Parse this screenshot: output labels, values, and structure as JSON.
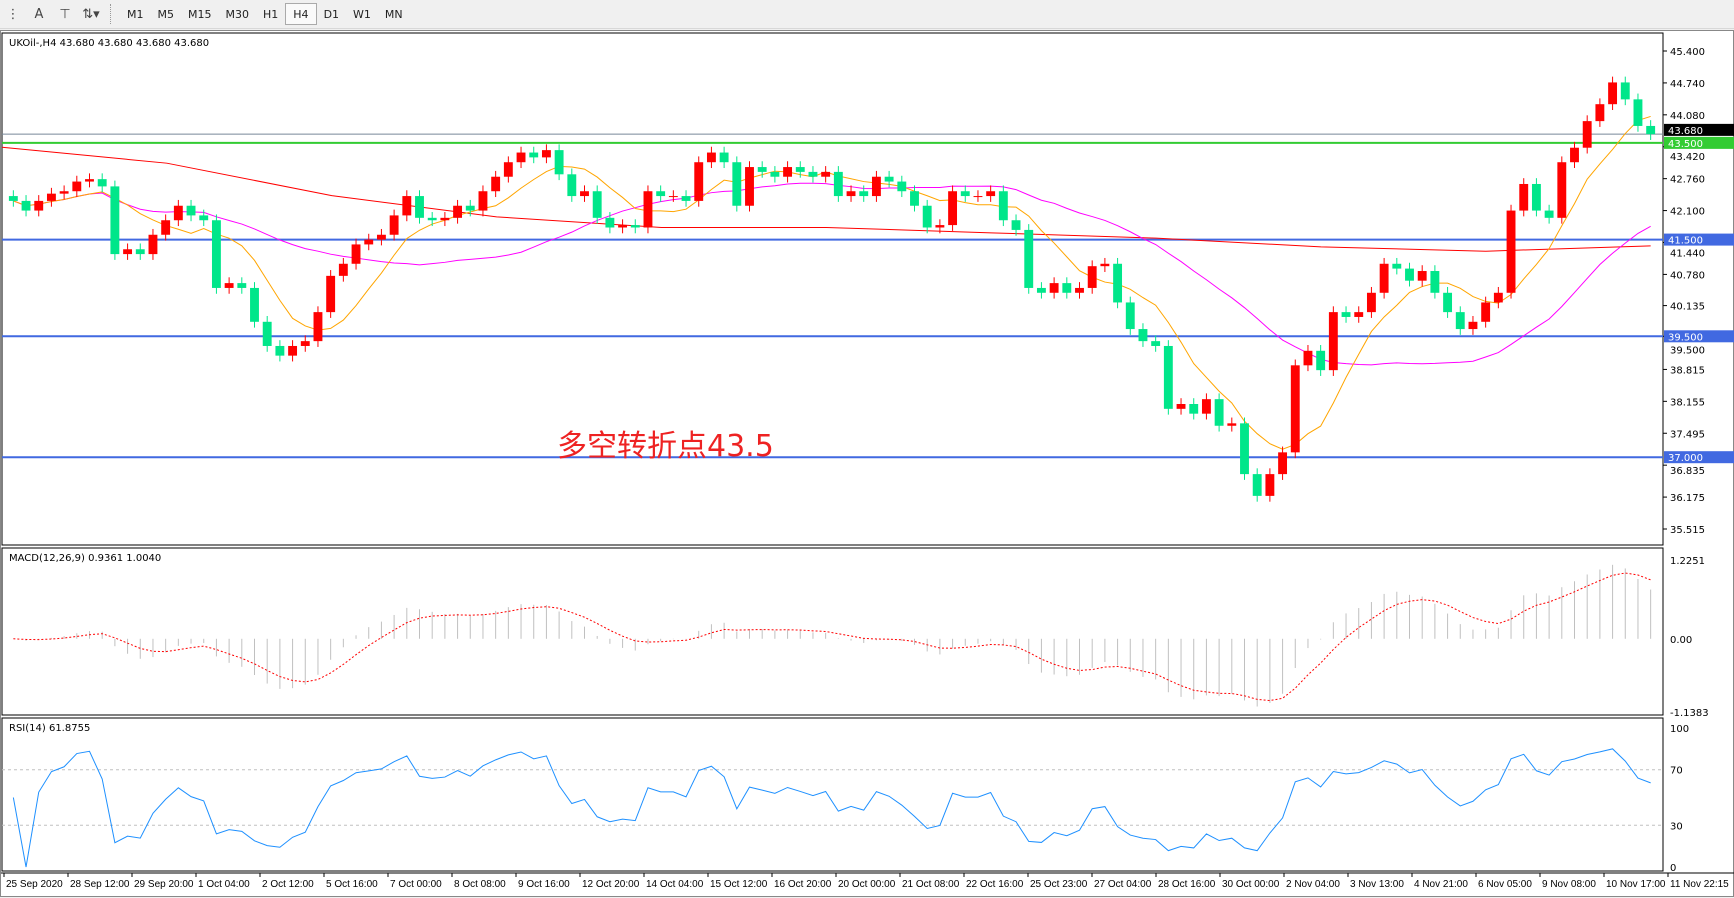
{
  "toolbar": {
    "icons": [
      "period-separator-icon",
      "text-icon",
      "text-label-icon",
      "arrows-icon"
    ],
    "timeframes": [
      "M1",
      "M5",
      "M15",
      "M30",
      "H1",
      "H4",
      "D1",
      "W1",
      "MN"
    ],
    "active_timeframe": "H4"
  },
  "chart_data": {
    "type": "candlestick",
    "symbol_header": "UKOil-,H4  43.680 43.680 43.680 43.680",
    "annotation": "多空转折点43.5",
    "up_color": "#ff0000",
    "down_color": "#00e68a",
    "price_axis": {
      "ylim": [
        35.515,
        45.4
      ],
      "ticks": [
        "45.400",
        "44.740",
        "44.080",
        "43.420",
        "42.760",
        "42.100",
        "41.440",
        "40.780",
        "40.135",
        "39.500",
        "38.815",
        "38.155",
        "37.495",
        "36.835",
        "36.175",
        "35.515"
      ]
    },
    "horizontal_lines": [
      {
        "price": 43.5,
        "label": "43.500",
        "color": "#33cc33"
      },
      {
        "price": 41.5,
        "label": "41.500",
        "color": "#4169e1"
      },
      {
        "price": 39.5,
        "label": "39.500",
        "color": "#4169e1"
      },
      {
        "price": 37.0,
        "label": "37.000",
        "color": "#4169e1"
      }
    ],
    "bid_line": {
      "price": 43.68,
      "label": "43.680",
      "color": "#778899"
    },
    "close": [
      42.3,
      42.1,
      42.3,
      42.45,
      42.5,
      42.7,
      42.75,
      42.6,
      41.2,
      41.3,
      41.2,
      41.6,
      41.9,
      42.2,
      42.0,
      41.9,
      40.5,
      40.6,
      40.5,
      39.8,
      39.3,
      39.1,
      39.3,
      39.4,
      40.0,
      40.75,
      41.0,
      41.4,
      41.5,
      41.6,
      42.0,
      42.4,
      41.95,
      41.9,
      41.95,
      42.2,
      42.1,
      42.5,
      42.8,
      43.1,
      43.3,
      43.2,
      43.35,
      42.85,
      42.4,
      42.5,
      41.95,
      41.75,
      41.8,
      41.75,
      42.5,
      42.4,
      42.4,
      42.3,
      43.1,
      43.3,
      43.1,
      42.2,
      43.0,
      42.9,
      42.8,
      43.0,
      42.9,
      42.8,
      42.9,
      42.4,
      42.5,
      42.4,
      42.8,
      42.7,
      42.5,
      42.2,
      41.75,
      41.8,
      42.5,
      42.4,
      42.4,
      42.5,
      41.9,
      41.7,
      40.5,
      40.4,
      40.6,
      40.4,
      40.5,
      40.95,
      41.0,
      40.2,
      39.65,
      39.4,
      39.3,
      38.0,
      38.1,
      37.9,
      38.2,
      37.65,
      37.7,
      36.65,
      36.2,
      36.65,
      37.1,
      38.9,
      39.2,
      38.8,
      40.0,
      39.9,
      40.0,
      40.4,
      41.0,
      40.9,
      40.65,
      40.85,
      40.4,
      40.0,
      39.65,
      39.8,
      40.2,
      40.4,
      42.1,
      42.65,
      42.1,
      41.95,
      43.1,
      43.4,
      43.95,
      44.3,
      44.75,
      44.4,
      43.85,
      43.68
    ],
    "ma_red": [
      43.41,
      43.08,
      42.41,
      41.97,
      41.75,
      41.75,
      41.64,
      41.53,
      41.35,
      41.26,
      41.37
    ],
    "x_tick_labels": [
      "25 Sep 2020",
      "28 Sep 12:00",
      "29 Sep 20:00",
      "1 Oct 04:00",
      "2 Oct 12:00",
      "5 Oct 16:00",
      "7 Oct 00:00",
      "8 Oct 08:00",
      "9 Oct 16:00",
      "12 Oct 20:00",
      "14 Oct 04:00",
      "15 Oct 12:00",
      "16 Oct 20:00",
      "20 Oct 00:00",
      "21 Oct 08:00",
      "22 Oct 16:00",
      "25 Oct 23:00",
      "27 Oct 04:00",
      "28 Oct 16:00",
      "30 Oct 00:00",
      "2 Nov 04:00",
      "3 Nov 13:00",
      "4 Nov 21:00",
      "6 Nov 05:00",
      "9 Nov 08:00",
      "10 Nov 17:00",
      "11 Nov 22:15"
    ],
    "macd": {
      "label": "MACD(12,26,9) 0.9361 1.0040",
      "ylim": [
        -1.1383,
        1.2251
      ],
      "ticks": [
        "1.2251",
        "0.00",
        "-1.1383"
      ]
    },
    "rsi": {
      "label": "RSI(14) 61.8755",
      "ylim": [
        0,
        100
      ],
      "ticks": [
        "100",
        "70",
        "30",
        "0"
      ],
      "levels": [
        70,
        30
      ]
    }
  }
}
